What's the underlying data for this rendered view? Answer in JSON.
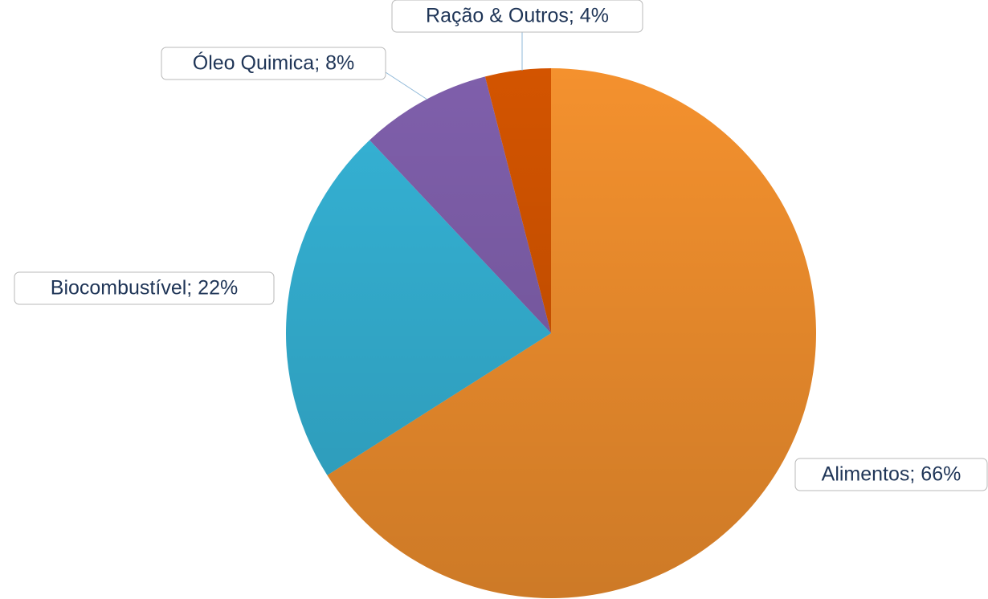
{
  "chart_data": {
    "type": "pie",
    "value_labels": [
      "Alimentos; 66%",
      "Biocombustível; 22%",
      "Óleo Quimica; 8%",
      "Ração & Outros; 4%"
    ],
    "values": [
      66,
      22,
      8,
      4
    ],
    "colors": [
      "#f4912e",
      "#35b3d6",
      "#7f5fab",
      "#d35400"
    ]
  }
}
